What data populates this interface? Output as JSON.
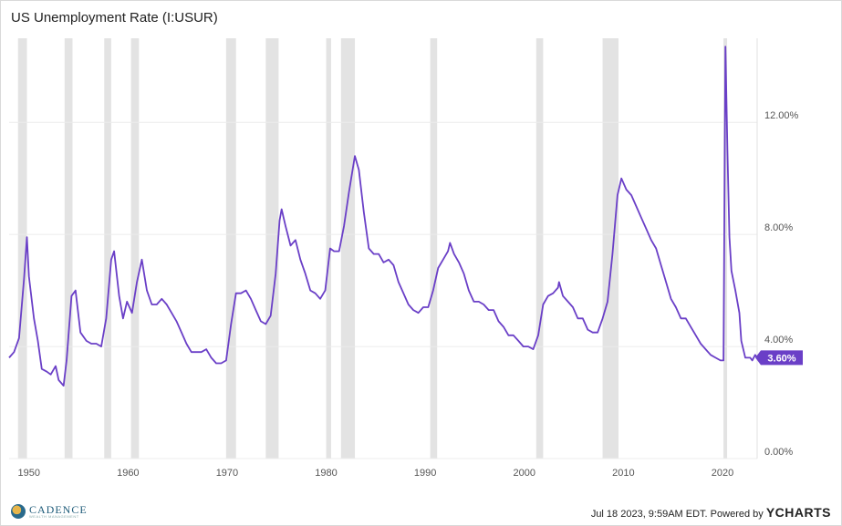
{
  "title": "US Unemployment Rate (I:USUR)",
  "footer": {
    "timestamp": "Jul 18 2023, 9:59AM EDT.",
    "powered": "Powered by",
    "brand": "YCHARTS"
  },
  "logo": {
    "name": "CADENCE",
    "sub": "WEALTH MANAGEMENT"
  },
  "colors": {
    "line": "#6a3fc7",
    "recession": "#e3e3e3",
    "grid": "#ececec",
    "badge": "#6a3fc7"
  },
  "chart_data": {
    "type": "line",
    "title": "US Unemployment Rate (I:USUR)",
    "xlim": [
      1948.0,
      2023.5
    ],
    "ylim": [
      0,
      15
    ],
    "y_ticks": [
      {
        "value": 0,
        "label": "0.00%"
      },
      {
        "value": 4,
        "label": "4.00%"
      },
      {
        "value": 8,
        "label": "8.00%"
      },
      {
        "value": 12,
        "label": "12.00%"
      }
    ],
    "x_ticks": [
      {
        "value": 1950,
        "label": "1950"
      },
      {
        "value": 1960,
        "label": "1960"
      },
      {
        "value": 1970,
        "label": "1970"
      },
      {
        "value": 1980,
        "label": "1980"
      },
      {
        "value": 1990,
        "label": "1990"
      },
      {
        "value": 2000,
        "label": "2000"
      },
      {
        "value": 2010,
        "label": "2010"
      },
      {
        "value": 2020,
        "label": "2020"
      }
    ],
    "recessions": [
      [
        1948.9,
        1949.8
      ],
      [
        1953.6,
        1954.4
      ],
      [
        1957.6,
        1958.3
      ],
      [
        1960.3,
        1961.1
      ],
      [
        1969.9,
        1970.9
      ],
      [
        1973.9,
        1975.2
      ],
      [
        1980.0,
        1980.5
      ],
      [
        1981.5,
        1982.9
      ],
      [
        1990.5,
        1991.2
      ],
      [
        2001.2,
        2001.9
      ],
      [
        2007.9,
        2009.5
      ],
      [
        2020.1,
        2020.3
      ]
    ],
    "series": [
      {
        "last_label": "3.60%",
        "points": [
          [
            1948.0,
            3.6
          ],
          [
            1948.5,
            3.8
          ],
          [
            1949.0,
            4.3
          ],
          [
            1949.5,
            6.4
          ],
          [
            1949.8,
            7.9
          ],
          [
            1950.0,
            6.5
          ],
          [
            1950.5,
            5.0
          ],
          [
            1950.9,
            4.2
          ],
          [
            1951.3,
            3.2
          ],
          [
            1951.8,
            3.1
          ],
          [
            1952.2,
            3.0
          ],
          [
            1952.7,
            3.3
          ],
          [
            1953.0,
            2.8
          ],
          [
            1953.5,
            2.6
          ],
          [
            1953.8,
            3.5
          ],
          [
            1954.3,
            5.8
          ],
          [
            1954.7,
            6.0
          ],
          [
            1955.2,
            4.5
          ],
          [
            1955.8,
            4.2
          ],
          [
            1956.3,
            4.1
          ],
          [
            1956.8,
            4.1
          ],
          [
            1957.3,
            4.0
          ],
          [
            1957.8,
            5.0
          ],
          [
            1958.3,
            7.1
          ],
          [
            1958.6,
            7.4
          ],
          [
            1959.1,
            5.8
          ],
          [
            1959.5,
            5.0
          ],
          [
            1959.9,
            5.6
          ],
          [
            1960.4,
            5.2
          ],
          [
            1960.9,
            6.3
          ],
          [
            1961.4,
            7.1
          ],
          [
            1961.9,
            6.0
          ],
          [
            1962.4,
            5.5
          ],
          [
            1962.9,
            5.5
          ],
          [
            1963.4,
            5.7
          ],
          [
            1963.9,
            5.5
          ],
          [
            1964.4,
            5.2
          ],
          [
            1964.9,
            4.9
          ],
          [
            1965.4,
            4.5
          ],
          [
            1965.9,
            4.1
          ],
          [
            1966.4,
            3.8
          ],
          [
            1966.9,
            3.8
          ],
          [
            1967.4,
            3.8
          ],
          [
            1967.9,
            3.9
          ],
          [
            1968.4,
            3.6
          ],
          [
            1968.9,
            3.4
          ],
          [
            1969.4,
            3.4
          ],
          [
            1969.9,
            3.5
          ],
          [
            1970.4,
            4.8
          ],
          [
            1970.9,
            5.9
          ],
          [
            1971.4,
            5.9
          ],
          [
            1971.9,
            6.0
          ],
          [
            1972.4,
            5.7
          ],
          [
            1972.9,
            5.3
          ],
          [
            1973.4,
            4.9
          ],
          [
            1973.9,
            4.8
          ],
          [
            1974.4,
            5.1
          ],
          [
            1974.9,
            6.6
          ],
          [
            1975.3,
            8.5
          ],
          [
            1975.5,
            8.9
          ],
          [
            1975.9,
            8.3
          ],
          [
            1976.4,
            7.6
          ],
          [
            1976.9,
            7.8
          ],
          [
            1977.4,
            7.1
          ],
          [
            1977.9,
            6.6
          ],
          [
            1978.4,
            6.0
          ],
          [
            1978.9,
            5.9
          ],
          [
            1979.4,
            5.7
          ],
          [
            1979.9,
            6.0
          ],
          [
            1980.4,
            7.5
          ],
          [
            1980.8,
            7.4
          ],
          [
            1981.3,
            7.4
          ],
          [
            1981.8,
            8.3
          ],
          [
            1982.3,
            9.5
          ],
          [
            1982.9,
            10.8
          ],
          [
            1983.3,
            10.3
          ],
          [
            1983.8,
            8.8
          ],
          [
            1984.3,
            7.5
          ],
          [
            1984.8,
            7.3
          ],
          [
            1985.3,
            7.3
          ],
          [
            1985.8,
            7.0
          ],
          [
            1986.3,
            7.1
          ],
          [
            1986.8,
            6.9
          ],
          [
            1987.3,
            6.3
          ],
          [
            1987.8,
            5.9
          ],
          [
            1988.3,
            5.5
          ],
          [
            1988.8,
            5.3
          ],
          [
            1989.3,
            5.2
          ],
          [
            1989.8,
            5.4
          ],
          [
            1990.3,
            5.4
          ],
          [
            1990.8,
            6.0
          ],
          [
            1991.3,
            6.8
          ],
          [
            1991.8,
            7.1
          ],
          [
            1992.3,
            7.4
          ],
          [
            1992.5,
            7.7
          ],
          [
            1992.9,
            7.3
          ],
          [
            1993.4,
            7.0
          ],
          [
            1993.9,
            6.6
          ],
          [
            1994.4,
            6.0
          ],
          [
            1994.9,
            5.6
          ],
          [
            1995.4,
            5.6
          ],
          [
            1995.9,
            5.5
          ],
          [
            1996.4,
            5.3
          ],
          [
            1996.9,
            5.3
          ],
          [
            1997.4,
            4.9
          ],
          [
            1997.9,
            4.7
          ],
          [
            1998.4,
            4.4
          ],
          [
            1998.9,
            4.4
          ],
          [
            1999.4,
            4.2
          ],
          [
            1999.9,
            4.0
          ],
          [
            2000.4,
            4.0
          ],
          [
            2000.9,
            3.9
          ],
          [
            2001.4,
            4.4
          ],
          [
            2001.9,
            5.5
          ],
          [
            2002.4,
            5.8
          ],
          [
            2002.9,
            5.9
          ],
          [
            2003.4,
            6.1
          ],
          [
            2003.5,
            6.3
          ],
          [
            2003.9,
            5.8
          ],
          [
            2004.4,
            5.6
          ],
          [
            2004.9,
            5.4
          ],
          [
            2005.4,
            5.0
          ],
          [
            2005.9,
            5.0
          ],
          [
            2006.4,
            4.6
          ],
          [
            2006.9,
            4.5
          ],
          [
            2007.4,
            4.5
          ],
          [
            2007.9,
            5.0
          ],
          [
            2008.4,
            5.6
          ],
          [
            2008.9,
            7.3
          ],
          [
            2009.4,
            9.4
          ],
          [
            2009.8,
            10.0
          ],
          [
            2010.3,
            9.6
          ],
          [
            2010.8,
            9.4
          ],
          [
            2011.3,
            9.0
          ],
          [
            2011.8,
            8.6
          ],
          [
            2012.3,
            8.2
          ],
          [
            2012.8,
            7.8
          ],
          [
            2013.3,
            7.5
          ],
          [
            2013.8,
            6.9
          ],
          [
            2014.3,
            6.3
          ],
          [
            2014.8,
            5.7
          ],
          [
            2015.3,
            5.4
          ],
          [
            2015.8,
            5.0
          ],
          [
            2016.3,
            5.0
          ],
          [
            2016.8,
            4.7
          ],
          [
            2017.3,
            4.4
          ],
          [
            2017.8,
            4.1
          ],
          [
            2018.3,
            3.9
          ],
          [
            2018.8,
            3.7
          ],
          [
            2019.3,
            3.6
          ],
          [
            2019.8,
            3.5
          ],
          [
            2020.1,
            3.5
          ],
          [
            2020.3,
            14.7
          ],
          [
            2020.5,
            11.0
          ],
          [
            2020.7,
            7.9
          ],
          [
            2020.9,
            6.7
          ],
          [
            2021.3,
            6.0
          ],
          [
            2021.7,
            5.2
          ],
          [
            2021.9,
            4.2
          ],
          [
            2022.3,
            3.6
          ],
          [
            2022.8,
            3.6
          ],
          [
            2023.0,
            3.5
          ],
          [
            2023.3,
            3.7
          ],
          [
            2023.5,
            3.6
          ]
        ]
      }
    ]
  }
}
